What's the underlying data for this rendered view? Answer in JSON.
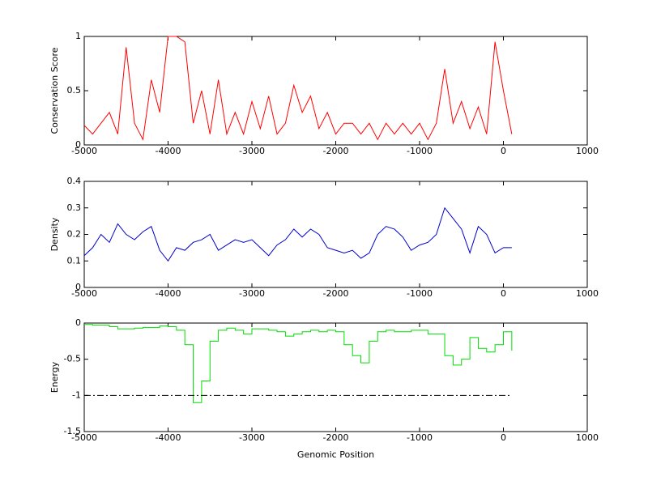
{
  "chart_data": [
    {
      "type": "line",
      "ylabel": "Conservation Score",
      "color": "#ff0000",
      "x": [
        -5000,
        -4900,
        -4800,
        -4700,
        -4600,
        -4500,
        -4400,
        -4300,
        -4200,
        -4100,
        -4000,
        -3900,
        -3800,
        -3700,
        -3600,
        -3500,
        -3400,
        -3300,
        -3200,
        -3100,
        -3000,
        -2900,
        -2800,
        -2700,
        -2600,
        -2500,
        -2400,
        -2300,
        -2200,
        -2100,
        -2000,
        -1900,
        -1800,
        -1700,
        -1600,
        -1500,
        -1400,
        -1300,
        -1200,
        -1100,
        -1000,
        -900,
        -800,
        -700,
        -600,
        -500,
        -400,
        -300,
        -200,
        -100,
        0,
        100
      ],
      "values": [
        0.18,
        0.1,
        0.2,
        0.3,
        0.1,
        0.9,
        0.2,
        0.05,
        0.6,
        0.3,
        1,
        1,
        0.95,
        0.2,
        0.5,
        0.1,
        0.6,
        0.1,
        0.3,
        0.1,
        0.4,
        0.15,
        0.45,
        0.1,
        0.2,
        0.55,
        0.3,
        0.45,
        0.15,
        0.3,
        0.1,
        0.2,
        0.2,
        0.1,
        0.2,
        0.05,
        0.2,
        0.1,
        0.2,
        0.1,
        0.2,
        0.05,
        0.2,
        0.7,
        0.2,
        0.4,
        0.15,
        0.35,
        0.1,
        0.95,
        0.5,
        0.1
      ],
      "xlim": [
        -5000,
        1000
      ],
      "xticks": [
        -5000,
        -4000,
        -3000,
        -2000,
        -1000,
        0,
        1000
      ],
      "ylim": [
        0,
        1
      ],
      "yticks": [
        0,
        0.5,
        1
      ]
    },
    {
      "type": "line",
      "ylabel": "Density",
      "color": "#0000cc",
      "x": [
        -5000,
        -4900,
        -4800,
        -4700,
        -4600,
        -4500,
        -4400,
        -4300,
        -4200,
        -4100,
        -4000,
        -3900,
        -3800,
        -3700,
        -3600,
        -3500,
        -3400,
        -3300,
        -3200,
        -3100,
        -3000,
        -2900,
        -2800,
        -2700,
        -2600,
        -2500,
        -2400,
        -2300,
        -2200,
        -2100,
        -2000,
        -1900,
        -1800,
        -1700,
        -1600,
        -1500,
        -1400,
        -1300,
        -1200,
        -1100,
        -1000,
        -900,
        -800,
        -700,
        -600,
        -500,
        -400,
        -300,
        -200,
        -100,
        0,
        100
      ],
      "values": [
        0.12,
        0.15,
        0.2,
        0.17,
        0.24,
        0.2,
        0.18,
        0.21,
        0.23,
        0.14,
        0.1,
        0.15,
        0.14,
        0.17,
        0.18,
        0.2,
        0.14,
        0.16,
        0.18,
        0.17,
        0.18,
        0.15,
        0.12,
        0.16,
        0.18,
        0.22,
        0.19,
        0.22,
        0.2,
        0.15,
        0.14,
        0.13,
        0.14,
        0.11,
        0.13,
        0.2,
        0.23,
        0.22,
        0.19,
        0.14,
        0.16,
        0.17,
        0.2,
        0.3,
        0.26,
        0.22,
        0.13,
        0.23,
        0.2,
        0.13,
        0.15,
        0.15
      ],
      "xlim": [
        -5000,
        1000
      ],
      "xticks": [
        -5000,
        -4000,
        -3000,
        -2000,
        -1000,
        0,
        1000
      ],
      "ylim": [
        0,
        0.4
      ],
      "yticks": [
        0,
        0.1,
        0.2,
        0.3,
        0.4
      ]
    },
    {
      "type": "line",
      "ylabel": "Energy",
      "xlabel": "Genomic Position",
      "color": "#00dd00",
      "step": true,
      "x": [
        -5000,
        -4900,
        -4800,
        -4700,
        -4600,
        -4500,
        -4400,
        -4300,
        -4200,
        -4100,
        -4000,
        -3900,
        -3800,
        -3700,
        -3600,
        -3500,
        -3400,
        -3300,
        -3200,
        -3100,
        -3000,
        -2900,
        -2800,
        -2700,
        -2600,
        -2500,
        -2400,
        -2300,
        -2200,
        -2100,
        -2000,
        -1900,
        -1800,
        -1700,
        -1600,
        -1500,
        -1400,
        -1300,
        -1200,
        -1100,
        -1000,
        -900,
        -800,
        -700,
        -600,
        -500,
        -400,
        -300,
        -200,
        -100,
        0,
        100
      ],
      "values": [
        -0.02,
        -0.03,
        -0.03,
        -0.05,
        -0.08,
        -0.08,
        -0.07,
        -0.06,
        -0.06,
        -0.04,
        -0.05,
        -0.1,
        -0.3,
        -1.1,
        -0.8,
        -0.25,
        -0.1,
        -0.07,
        -0.1,
        -0.15,
        -0.08,
        -0.08,
        -0.1,
        -0.12,
        -0.18,
        -0.15,
        -0.12,
        -0.1,
        -0.12,
        -0.1,
        -0.12,
        -0.3,
        -0.45,
        -0.55,
        -0.25,
        -0.12,
        -0.1,
        -0.12,
        -0.12,
        -0.1,
        -0.1,
        -0.15,
        -0.15,
        -0.45,
        -0.58,
        -0.5,
        -0.2,
        -0.35,
        -0.4,
        -0.3,
        -0.12,
        -0.38
      ],
      "reference_line": {
        "value": -1,
        "x": [
          -5000,
          100
        ],
        "color": "#000000",
        "style": "dash-dot"
      },
      "xlim": [
        -5000,
        1000
      ],
      "xticks": [
        -5000,
        -4000,
        -3000,
        -2000,
        -1000,
        0,
        1000
      ],
      "ylim": [
        -1.5,
        0
      ],
      "yticks": [
        -1.5,
        -1,
        -0.5,
        0
      ]
    }
  ]
}
